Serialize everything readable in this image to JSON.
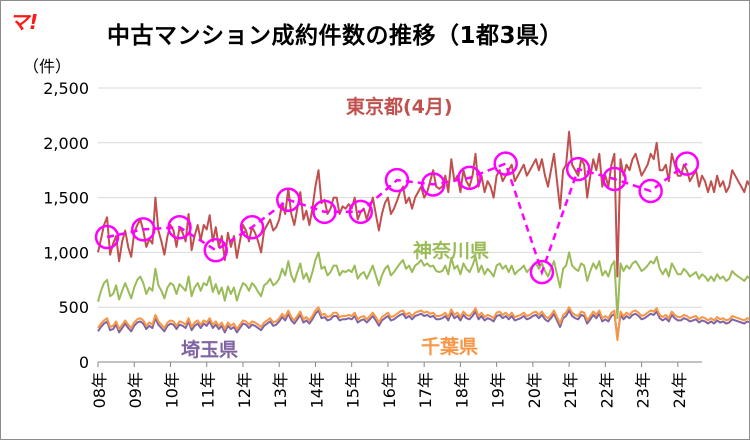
{
  "logo_text": "マ!",
  "title": "中古マンション成約件数の推移（1都3県）",
  "unit_label": "（件）",
  "colors": {
    "tokyo": "#c0504d",
    "kanagawa": "#9bbb59",
    "saitama": "#8064a2",
    "chiba": "#f79646",
    "april": "#ff00ff"
  },
  "chart_data": {
    "type": "line",
    "title": "中古マンション成約件数の推移（1都3県）",
    "ylabel": "（件）",
    "ylim": [
      0,
      2500
    ],
    "yticks": [
      0,
      500,
      1000,
      1500,
      2000,
      2500
    ],
    "ytick_labels": [
      "0",
      "500",
      "1,000",
      "1,500",
      "2,000",
      "2,500"
    ],
    "grid": true,
    "x_start": "2008-01",
    "x_end": "2024-09",
    "xtick_labels": [
      "08年",
      "09年",
      "10年",
      "11年",
      "12年",
      "13年",
      "14年",
      "15年",
      "16年",
      "17年",
      "18年",
      "19年",
      "20年",
      "21年",
      "22年",
      "23年",
      "24年"
    ],
    "series": [
      {
        "name": "東京都",
        "values": [
          1000,
          1120,
          1250,
          1320,
          980,
          1080,
          1150,
          920,
          1100,
          1200,
          1050,
          960,
          1180,
          1250,
          1300,
          1200,
          1050,
          1120,
          1080,
          1500,
          1200,
          1100,
          980,
          1150,
          1250,
          1200,
          1050,
          1230,
          1180,
          1100,
          1350,
          1020,
          1150,
          1250,
          1110,
          1250,
          1210,
          1340,
          1100,
          1230,
          1050,
          1150,
          930,
          1180,
          1050,
          1150,
          950,
          1100,
          1250,
          1200,
          1100,
          1230,
          1180,
          1100,
          1000,
          1200,
          1250,
          1300,
          1200,
          1230,
          1300,
          1450,
          1350,
          1580,
          1350,
          1250,
          1400,
          1550,
          1300,
          1380,
          1250,
          1400,
          1600,
          1750,
          1450,
          1480,
          1350,
          1400,
          1500,
          1500,
          1350,
          1420,
          1400,
          1440,
          1400,
          1500,
          1300,
          1370,
          1400,
          1300,
          1400,
          1500,
          1350,
          1200,
          1350,
          1450,
          1500,
          1350,
          1400,
          1470,
          1550,
          1600,
          1450,
          1500,
          1400,
          1500,
          1550,
          1600,
          1500,
          1550,
          1650,
          1750,
          1600,
          1580,
          1600,
          1700,
          1550,
          1850,
          1650,
          1700,
          1550,
          1750,
          1650,
          1600,
          1700,
          1900,
          1600,
          1700,
          1550,
          1650,
          1600,
          1500,
          1700,
          1750,
          1650,
          1700,
          1750,
          1800,
          1650,
          1700,
          1750,
          1800,
          1700,
          1750,
          1800,
          1850,
          1750,
          1850,
          1700,
          1600,
          1750,
          1900,
          1650,
          1400,
          1750,
          1800,
          2100,
          1800,
          1750,
          1700,
          1850,
          1800,
          1500,
          1700,
          1850,
          1750,
          1900,
          1600,
          1700,
          1600,
          1800,
          1900,
          780,
          1850,
          1700,
          1800,
          1750,
          1850,
          1900,
          1800,
          1700,
          1750,
          1800,
          1900,
          1850,
          2000,
          1750,
          1750,
          1800,
          1650,
          1900,
          1800,
          1700,
          1700,
          1800,
          1750,
          1650,
          1700,
          1750,
          1600,
          1700,
          1650,
          1550,
          1650,
          1550,
          1700,
          1600,
          1650,
          1550,
          1600,
          1750,
          1700,
          1650,
          1600,
          1550,
          1650,
          1600,
          1450,
          1650,
          1750,
          1550,
          1750,
          1800,
          1600,
          1700,
          1750,
          1650,
          1900,
          2050,
          1800,
          1700,
          1800,
          1700,
          1750
        ]
      },
      {
        "name": "神奈川県",
        "values": [
          550,
          650,
          720,
          750,
          600,
          620,
          700,
          570,
          650,
          720,
          650,
          580,
          680,
          750,
          780,
          720,
          620,
          680,
          650,
          850,
          700,
          650,
          580,
          680,
          720,
          700,
          620,
          710,
          680,
          650,
          780,
          600,
          680,
          720,
          650,
          720,
          700,
          780,
          640,
          710,
          620,
          680,
          560,
          690,
          620,
          680,
          560,
          650,
          720,
          700,
          650,
          720,
          690,
          640,
          600,
          700,
          720,
          760,
          700,
          720,
          760,
          850,
          790,
          920,
          790,
          730,
          820,
          900,
          760,
          810,
          730,
          820,
          930,
          1000,
          850,
          870,
          790,
          820,
          880,
          880,
          790,
          830,
          820,
          840,
          820,
          880,
          760,
          800,
          820,
          760,
          820,
          880,
          790,
          700,
          790,
          850,
          880,
          790,
          820,
          860,
          900,
          930,
          850,
          880,
          820,
          880,
          900,
          930,
          880,
          900,
          870,
          880,
          830,
          820,
          830,
          880,
          800,
          950,
          850,
          880,
          800,
          900,
          850,
          820,
          880,
          960,
          820,
          880,
          800,
          850,
          820,
          780,
          880,
          900,
          850,
          880,
          820,
          880,
          800,
          830,
          850,
          880,
          820,
          850,
          880,
          900,
          850,
          900,
          830,
          780,
          850,
          920,
          800,
          680,
          850,
          880,
          1000,
          880,
          850,
          830,
          900,
          880,
          740,
          830,
          900,
          850,
          920,
          790,
          830,
          780,
          880,
          920,
          400,
          900,
          830,
          880,
          850,
          900,
          920,
          880,
          830,
          850,
          880,
          920,
          900,
          960,
          850,
          800,
          850,
          780,
          900,
          850,
          800,
          800,
          850,
          820,
          780,
          800,
          820,
          760,
          800,
          780,
          740,
          780,
          740,
          800,
          760,
          780,
          740,
          760,
          830,
          800,
          780,
          760,
          740,
          780,
          760,
          690,
          780,
          830,
          740,
          830,
          850,
          760,
          800,
          830,
          780,
          900,
          880,
          860,
          800,
          850,
          800,
          820
        ]
      },
      {
        "name": "埼玉県",
        "values": [
          280,
          320,
          350,
          370,
          290,
          300,
          340,
          270,
          310,
          350,
          310,
          280,
          330,
          360,
          370,
          350,
          300,
          330,
          310,
          400,
          340,
          310,
          280,
          330,
          350,
          340,
          300,
          340,
          330,
          310,
          370,
          290,
          330,
          350,
          310,
          350,
          330,
          370,
          310,
          340,
          300,
          330,
          270,
          330,
          300,
          320,
          270,
          310,
          350,
          340,
          310,
          340,
          330,
          310,
          290,
          330,
          350,
          370,
          330,
          340,
          370,
          410,
          380,
          440,
          380,
          350,
          390,
          430,
          360,
          380,
          350,
          390,
          440,
          470,
          400,
          410,
          380,
          390,
          420,
          420,
          380,
          390,
          390,
          400,
          390,
          420,
          360,
          380,
          390,
          360,
          390,
          420,
          380,
          330,
          380,
          400,
          420,
          380,
          390,
          410,
          430,
          440,
          400,
          420,
          390,
          420,
          430,
          440,
          420,
          430,
          410,
          420,
          390,
          390,
          400,
          420,
          380,
          450,
          400,
          420,
          380,
          430,
          400,
          390,
          420,
          460,
          390,
          420,
          380,
          400,
          390,
          370,
          420,
          430,
          400,
          420,
          390,
          420,
          380,
          390,
          400,
          420,
          390,
          400,
          420,
          430,
          400,
          430,
          390,
          370,
          400,
          440,
          380,
          320,
          400,
          420,
          470,
          420,
          400,
          390,
          430,
          420,
          350,
          390,
          430,
          400,
          440,
          370,
          390,
          370,
          420,
          440,
          220,
          430,
          390,
          420,
          400,
          430,
          440,
          420,
          390,
          400,
          420,
          440,
          430,
          460,
          400,
          380,
          400,
          370,
          430,
          400,
          380,
          380,
          400,
          390,
          370,
          380,
          390,
          360,
          380,
          370,
          350,
          370,
          350,
          380,
          360,
          370,
          350,
          360,
          390,
          380,
          370,
          360,
          350,
          370,
          360,
          330,
          370,
          390,
          350,
          390,
          400,
          360,
          380,
          390,
          370,
          430,
          420,
          410,
          380,
          400,
          380,
          390
        ]
      },
      {
        "name": "千葉県",
        "values": [
          310,
          350,
          380,
          400,
          320,
          330,
          370,
          300,
          340,
          380,
          340,
          310,
          360,
          390,
          400,
          380,
          330,
          360,
          340,
          430,
          370,
          340,
          310,
          360,
          380,
          370,
          330,
          370,
          360,
          340,
          400,
          320,
          360,
          380,
          340,
          380,
          360,
          400,
          340,
          370,
          330,
          360,
          300,
          360,
          330,
          350,
          300,
          340,
          380,
          370,
          340,
          370,
          360,
          340,
          320,
          360,
          380,
          400,
          360,
          370,
          400,
          440,
          410,
          470,
          410,
          380,
          420,
          460,
          390,
          410,
          380,
          420,
          470,
          500,
          430,
          440,
          410,
          420,
          450,
          450,
          410,
          420,
          420,
          430,
          420,
          450,
          390,
          410,
          420,
          390,
          420,
          450,
          410,
          360,
          410,
          430,
          450,
          410,
          420,
          440,
          460,
          470,
          430,
          450,
          420,
          450,
          460,
          470,
          450,
          460,
          440,
          450,
          420,
          420,
          430,
          450,
          410,
          480,
          430,
          450,
          410,
          460,
          430,
          420,
          450,
          490,
          420,
          450,
          410,
          430,
          420,
          400,
          450,
          460,
          430,
          450,
          420,
          450,
          410,
          420,
          430,
          450,
          420,
          430,
          450,
          460,
          430,
          460,
          420,
          400,
          430,
          470,
          410,
          350,
          430,
          450,
          500,
          450,
          430,
          420,
          460,
          450,
          380,
          420,
          460,
          430,
          470,
          400,
          420,
          400,
          450,
          470,
          200,
          460,
          420,
          450,
          430,
          460,
          470,
          450,
          420,
          430,
          450,
          470,
          460,
          490,
          430,
          410,
          430,
          400,
          460,
          430,
          410,
          410,
          430,
          420,
          400,
          410,
          420,
          390,
          410,
          400,
          380,
          400,
          380,
          410,
          390,
          400,
          380,
          390,
          420,
          410,
          400,
          390,
          380,
          400,
          390,
          360,
          400,
          420,
          380,
          420,
          430,
          390,
          410,
          420,
          400,
          460,
          450,
          440,
          410,
          430,
          410,
          420
        ]
      },
      {
        "name": "東京都（4月）",
        "x": [
          "2008-04",
          "2009-04",
          "2010-04",
          "2011-04",
          "2012-04",
          "2013-04",
          "2014-04",
          "2015-04",
          "2016-04",
          "2017-04",
          "2018-04",
          "2019-04",
          "2020-04",
          "2021-04",
          "2022-04",
          "2023-04",
          "2024-04"
        ],
        "values": [
          1140,
          1210,
          1230,
          1020,
          1230,
          1480,
          1370,
          1370,
          1660,
          1620,
          1680,
          1810,
          820,
          1760,
          1670,
          1560,
          1810
        ]
      }
    ],
    "annotations": [
      {
        "text": "東京都(4月)",
        "series": "東京都"
      },
      {
        "text": "神奈川県",
        "series": "神奈川県"
      },
      {
        "text": "埼玉県",
        "series": "埼玉県"
      },
      {
        "text": "千葉県",
        "series": "千葉県"
      }
    ]
  }
}
